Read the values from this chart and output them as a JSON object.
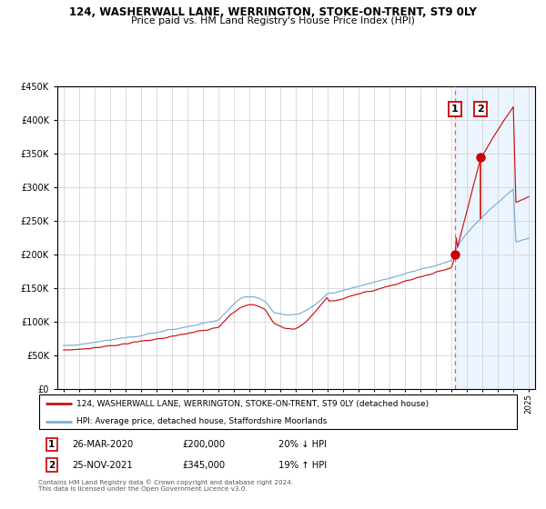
{
  "title1": "124, WASHERWALL LANE, WERRINGTON, STOKE-ON-TRENT, ST9 0LY",
  "title2": "Price paid vs. HM Land Registry's House Price Index (HPI)",
  "ylim": [
    0,
    450000
  ],
  "yticks": [
    0,
    50000,
    100000,
    150000,
    200000,
    250000,
    300000,
    350000,
    400000,
    450000
  ],
  "ytick_labels": [
    "£0",
    "£50K",
    "£100K",
    "£150K",
    "£200K",
    "£250K",
    "£300K",
    "£350K",
    "£400K",
    "£450K"
  ],
  "hpi_color": "#7aadd4",
  "price_color": "#cc1111",
  "marker_color": "#cc0000",
  "shade_color": "#ddeeff",
  "dashed_color": "#ff5555",
  "transaction1": {
    "date_label": "26-MAR-2020",
    "price": 200000,
    "pct": "20%",
    "dir": "↓",
    "marker_x": 2020.23
  },
  "transaction2": {
    "date_label": "25-NOV-2021",
    "price": 345000,
    "pct": "19%",
    "dir": "↑",
    "marker_x": 2021.9
  },
  "legend1": "124, WASHERWALL LANE, WERRINGTON, STOKE-ON-TRENT, ST9 0LY (detached house)",
  "legend2": "HPI: Average price, detached house, Staffordshire Moorlands",
  "footnote": "Contains HM Land Registry data © Crown copyright and database right 2024.\nThis data is licensed under the Open Government Licence v3.0.",
  "grid_color": "#cccccc",
  "bg_color": "#ffffff",
  "xlim": [
    1994.6,
    2025.4
  ]
}
